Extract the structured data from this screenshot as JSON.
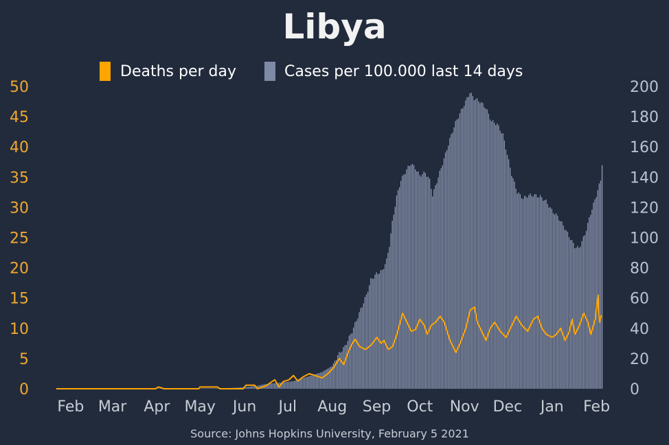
{
  "chart_data": {
    "type": "bar+line",
    "title": "Libya",
    "source": "Source: Johns Hopkins University, February 5 2021",
    "legend": {
      "placement": "top-center",
      "items": [
        {
          "label": "Deaths per day",
          "color": "#ffa500"
        },
        {
          "label": "Cases per 100.000 last 14 days",
          "color": "#7d8aa6"
        }
      ]
    },
    "colors": {
      "background": "#222b3c",
      "deaths": "#ffa500",
      "cases": "#8f9ab5",
      "left_axis": "#f0a830",
      "right_axis": "#b9c2d3",
      "month_labels": "#c8cdd6"
    },
    "x_axis": {
      "months": [
        "Feb",
        "Mar",
        "Apr",
        "May",
        "Jun",
        "Jul",
        "Aug",
        "Sep",
        "Oct",
        "Nov",
        "Dec",
        "Jan",
        "Feb"
      ]
    },
    "y_left": {
      "label": "Deaths per day",
      "range": [
        0,
        50
      ],
      "ticks": [
        "0",
        "5",
        "10",
        "15",
        "20",
        "25",
        "30",
        "35",
        "40",
        "45",
        "50"
      ]
    },
    "y_right": {
      "label": "Cases per 100.000 last 14 days",
      "range": [
        0,
        200
      ],
      "ticks": [
        "0",
        "20",
        "40",
        "60",
        "80",
        "100",
        "120",
        "140",
        "160",
        "180",
        "200"
      ]
    },
    "cases_weekly": [
      {
        "date": "2020-01-22",
        "value": 0
      },
      {
        "date": "2020-02-01",
        "value": 0
      },
      {
        "date": "2020-03-01",
        "value": 0
      },
      {
        "date": "2020-04-01",
        "value": 0.2
      },
      {
        "date": "2020-05-01",
        "value": 0.3
      },
      {
        "date": "2020-05-20",
        "value": 0.4
      },
      {
        "date": "2020-06-01",
        "value": 1
      },
      {
        "date": "2020-06-10",
        "value": 2
      },
      {
        "date": "2020-06-15",
        "value": 3
      },
      {
        "date": "2020-06-25",
        "value": 4
      },
      {
        "date": "2020-07-05",
        "value": 5
      },
      {
        "date": "2020-07-15",
        "value": 8
      },
      {
        "date": "2020-07-25",
        "value": 11
      },
      {
        "date": "2020-08-01",
        "value": 15
      },
      {
        "date": "2020-08-05",
        "value": 22
      },
      {
        "date": "2020-08-10",
        "value": 28
      },
      {
        "date": "2020-08-15",
        "value": 38
      },
      {
        "date": "2020-08-20",
        "value": 50
      },
      {
        "date": "2020-08-25",
        "value": 62
      },
      {
        "date": "2020-08-28",
        "value": 72
      },
      {
        "date": "2020-09-01",
        "value": 76
      },
      {
        "date": "2020-09-05",
        "value": 78
      },
      {
        "date": "2020-09-08",
        "value": 85
      },
      {
        "date": "2020-09-10",
        "value": 95
      },
      {
        "date": "2020-09-12",
        "value": 110
      },
      {
        "date": "2020-09-15",
        "value": 127
      },
      {
        "date": "2020-09-18",
        "value": 138
      },
      {
        "date": "2020-09-22",
        "value": 145
      },
      {
        "date": "2020-09-25",
        "value": 149
      },
      {
        "date": "2020-09-28",
        "value": 146
      },
      {
        "date": "2020-10-01",
        "value": 141
      },
      {
        "date": "2020-10-05",
        "value": 143
      },
      {
        "date": "2020-10-08",
        "value": 138
      },
      {
        "date": "2020-10-10",
        "value": 128
      },
      {
        "date": "2020-10-14",
        "value": 140
      },
      {
        "date": "2020-10-18",
        "value": 152
      },
      {
        "date": "2020-10-22",
        "value": 165
      },
      {
        "date": "2020-10-26",
        "value": 176
      },
      {
        "date": "2020-10-30",
        "value": 184
      },
      {
        "date": "2020-11-03",
        "value": 192
      },
      {
        "date": "2020-11-05",
        "value": 196
      },
      {
        "date": "2020-11-08",
        "value": 192
      },
      {
        "date": "2020-11-12",
        "value": 190
      },
      {
        "date": "2020-11-16",
        "value": 186
      },
      {
        "date": "2020-11-20",
        "value": 177
      },
      {
        "date": "2020-11-24",
        "value": 175
      },
      {
        "date": "2020-11-28",
        "value": 168
      },
      {
        "date": "2020-12-01",
        "value": 155
      },
      {
        "date": "2020-12-04",
        "value": 142
      },
      {
        "date": "2020-12-08",
        "value": 130
      },
      {
        "date": "2020-12-12",
        "value": 126
      },
      {
        "date": "2020-12-16",
        "value": 128
      },
      {
        "date": "2020-12-20",
        "value": 128
      },
      {
        "date": "2020-12-24",
        "value": 127
      },
      {
        "date": "2020-12-28",
        "value": 124
      },
      {
        "date": "2021-01-01",
        "value": 118
      },
      {
        "date": "2021-01-05",
        "value": 114
      },
      {
        "date": "2021-01-09",
        "value": 108
      },
      {
        "date": "2021-01-13",
        "value": 101
      },
      {
        "date": "2021-01-17",
        "value": 94
      },
      {
        "date": "2021-01-20",
        "value": 93
      },
      {
        "date": "2021-01-24",
        "value": 102
      },
      {
        "date": "2021-01-28",
        "value": 116
      },
      {
        "date": "2021-02-01",
        "value": 128
      },
      {
        "date": "2021-02-04",
        "value": 138
      },
      {
        "date": "2021-02-05",
        "value": 149
      }
    ],
    "deaths_daily": [
      {
        "date": "2020-01-22",
        "value": 0
      },
      {
        "date": "2020-03-31",
        "value": 0
      },
      {
        "date": "2020-04-02",
        "value": 0.3
      },
      {
        "date": "2020-04-06",
        "value": 0
      },
      {
        "date": "2020-04-30",
        "value": 0
      },
      {
        "date": "2020-05-01",
        "value": 0.3
      },
      {
        "date": "2020-05-13",
        "value": 0.3
      },
      {
        "date": "2020-05-15",
        "value": 0
      },
      {
        "date": "2020-05-31",
        "value": 0
      },
      {
        "date": "2020-06-02",
        "value": 0.6
      },
      {
        "date": "2020-06-08",
        "value": 0.6
      },
      {
        "date": "2020-06-10",
        "value": 0
      },
      {
        "date": "2020-06-16",
        "value": 0.5
      },
      {
        "date": "2020-06-22",
        "value": 1.5
      },
      {
        "date": "2020-06-25",
        "value": 0.3
      },
      {
        "date": "2020-06-28",
        "value": 1.2
      },
      {
        "date": "2020-07-02",
        "value": 1.5
      },
      {
        "date": "2020-07-05",
        "value": 2.2
      },
      {
        "date": "2020-07-08",
        "value": 1.3
      },
      {
        "date": "2020-07-12",
        "value": 2
      },
      {
        "date": "2020-07-16",
        "value": 2.5
      },
      {
        "date": "2020-07-20",
        "value": 2.2
      },
      {
        "date": "2020-07-25",
        "value": 1.8
      },
      {
        "date": "2020-07-29",
        "value": 2.5
      },
      {
        "date": "2020-08-02",
        "value": 3.5
      },
      {
        "date": "2020-08-06",
        "value": 5
      },
      {
        "date": "2020-08-09",
        "value": 4
      },
      {
        "date": "2020-08-12",
        "value": 6
      },
      {
        "date": "2020-08-15",
        "value": 7.5
      },
      {
        "date": "2020-08-17",
        "value": 8.2
      },
      {
        "date": "2020-08-20",
        "value": 7
      },
      {
        "date": "2020-08-24",
        "value": 6.5
      },
      {
        "date": "2020-08-28",
        "value": 7.2
      },
      {
        "date": "2020-09-01",
        "value": 8.5
      },
      {
        "date": "2020-09-04",
        "value": 7.5
      },
      {
        "date": "2020-09-06",
        "value": 8
      },
      {
        "date": "2020-09-09",
        "value": 6.5
      },
      {
        "date": "2020-09-12",
        "value": 7
      },
      {
        "date": "2020-09-15",
        "value": 9
      },
      {
        "date": "2020-09-19",
        "value": 12.5
      },
      {
        "date": "2020-09-22",
        "value": 11
      },
      {
        "date": "2020-09-25",
        "value": 9.5
      },
      {
        "date": "2020-09-28",
        "value": 9.8
      },
      {
        "date": "2020-10-01",
        "value": 11.5
      },
      {
        "date": "2020-10-04",
        "value": 10.5
      },
      {
        "date": "2020-10-06",
        "value": 9
      },
      {
        "date": "2020-10-09",
        "value": 10.5
      },
      {
        "date": "2020-10-12",
        "value": 11
      },
      {
        "date": "2020-10-15",
        "value": 12
      },
      {
        "date": "2020-10-18",
        "value": 11
      },
      {
        "date": "2020-10-22",
        "value": 8
      },
      {
        "date": "2020-10-26",
        "value": 6
      },
      {
        "date": "2020-10-29",
        "value": 7.5
      },
      {
        "date": "2020-11-02",
        "value": 10
      },
      {
        "date": "2020-11-05",
        "value": 13
      },
      {
        "date": "2020-11-08",
        "value": 13.5
      },
      {
        "date": "2020-11-10",
        "value": 11
      },
      {
        "date": "2020-11-13",
        "value": 9.5
      },
      {
        "date": "2020-11-16",
        "value": 8
      },
      {
        "date": "2020-11-19",
        "value": 10
      },
      {
        "date": "2020-11-22",
        "value": 11
      },
      {
        "date": "2020-11-26",
        "value": 9.5
      },
      {
        "date": "2020-11-30",
        "value": 8.5
      },
      {
        "date": "2020-12-03",
        "value": 10
      },
      {
        "date": "2020-12-07",
        "value": 12
      },
      {
        "date": "2020-12-11",
        "value": 10.5
      },
      {
        "date": "2020-12-15",
        "value": 9.5
      },
      {
        "date": "2020-12-19",
        "value": 11.5
      },
      {
        "date": "2020-12-22",
        "value": 12
      },
      {
        "date": "2020-12-25",
        "value": 10
      },
      {
        "date": "2020-12-28",
        "value": 9
      },
      {
        "date": "2021-01-01",
        "value": 8.5
      },
      {
        "date": "2021-01-04",
        "value": 9
      },
      {
        "date": "2021-01-07",
        "value": 10
      },
      {
        "date": "2021-01-10",
        "value": 8
      },
      {
        "date": "2021-01-13",
        "value": 9.5
      },
      {
        "date": "2021-01-15",
        "value": 11.5
      },
      {
        "date": "2021-01-17",
        "value": 9
      },
      {
        "date": "2021-01-20",
        "value": 10.5
      },
      {
        "date": "2021-01-23",
        "value": 12.5
      },
      {
        "date": "2021-01-26",
        "value": 11
      },
      {
        "date": "2021-01-28",
        "value": 9
      },
      {
        "date": "2021-01-31",
        "value": 11.5
      },
      {
        "date": "2021-02-02",
        "value": 15.5
      },
      {
        "date": "2021-02-03",
        "value": 11
      },
      {
        "date": "2021-02-04",
        "value": 12
      },
      {
        "date": "2021-02-05",
        "value": 12
      }
    ]
  }
}
